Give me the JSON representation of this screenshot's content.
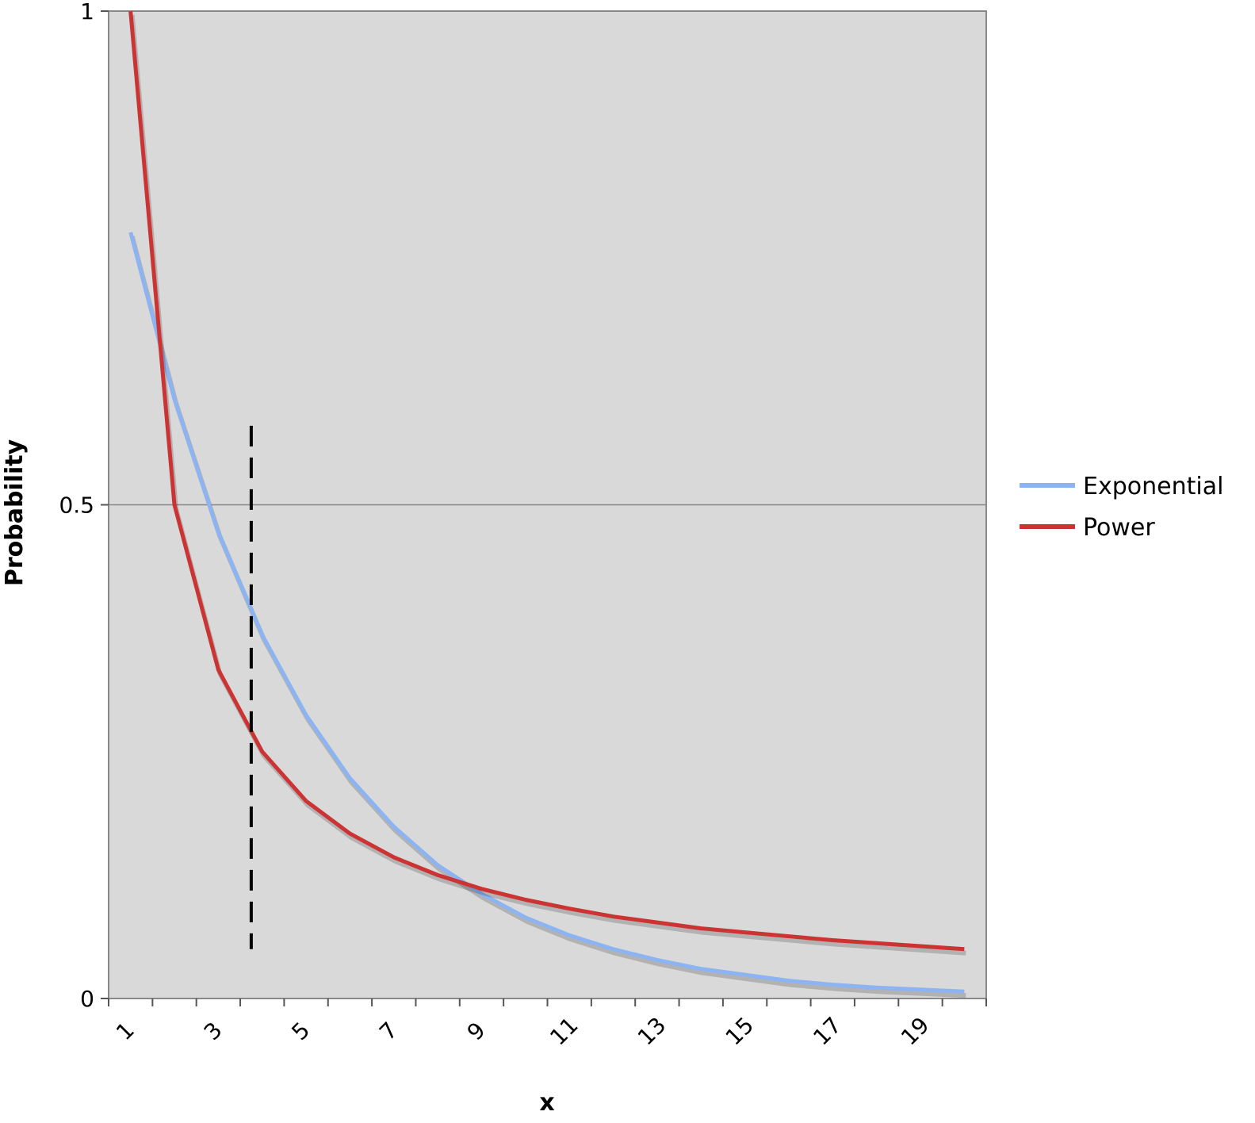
{
  "chart_data": {
    "type": "line",
    "title": "",
    "xlabel": "x",
    "ylabel": "Probability",
    "x_categories": [
      "1",
      "2",
      "3",
      "4",
      "5",
      "6",
      "7",
      "8",
      "9",
      "10",
      "11",
      "12",
      "13",
      "14",
      "15",
      "16",
      "17",
      "18",
      "19",
      "20"
    ],
    "x_tick_labels": [
      "1",
      "3",
      "5",
      "7",
      "9",
      "11",
      "13",
      "15",
      "17",
      "19"
    ],
    "y_tick_labels": [
      "0",
      "0.5",
      "1"
    ],
    "ylim": [
      0,
      1
    ],
    "grid": "horizontal line at 0.5",
    "legend_position": "right",
    "series": [
      {
        "name": "Exponential",
        "color": "#8db4f2",
        "values": [
          0.776,
          0.607,
          0.472,
          0.368,
          0.287,
          0.223,
          0.174,
          0.135,
          0.106,
          0.082,
          0.064,
          0.05,
          0.039,
          0.03,
          0.024,
          0.018,
          0.014,
          0.011,
          0.009,
          0.007
        ]
      },
      {
        "name": "Power",
        "color": "#cc3333",
        "values": [
          1.0,
          0.5,
          0.333,
          0.25,
          0.2,
          0.167,
          0.143,
          0.125,
          0.111,
          0.1,
          0.091,
          0.083,
          0.077,
          0.071,
          0.067,
          0.063,
          0.059,
          0.056,
          0.053,
          0.05
        ]
      }
    ],
    "annotations": [
      {
        "type": "vertical-dashed-line",
        "x": 3.75,
        "y_from": 0.05,
        "y_to": 0.58,
        "color": "#000000"
      }
    ],
    "colors": {
      "plot_background": "#d9d9d9",
      "frame": "#888888",
      "gridline": "#888888"
    }
  }
}
